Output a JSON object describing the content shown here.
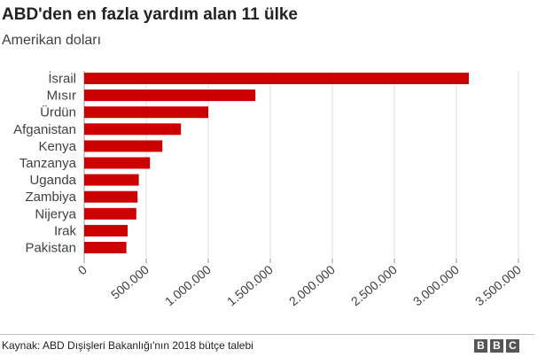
{
  "header": {
    "title": "ABD'den en fazla yardım alan 11 ülke",
    "subtitle": "Amerikan doları"
  },
  "footer": {
    "source": "Kaynak: ABD Dışişleri Bakanlığı'nın 2018 bütçe talebi",
    "logo_letters": [
      "B",
      "B",
      "C"
    ]
  },
  "colors": {
    "bar": "#cc0000",
    "grid": "#dddddd"
  },
  "chart_data": {
    "type": "bar",
    "orientation": "horizontal",
    "title": "ABD'den en fazla yardım alan 11 ülke",
    "subtitle": "Amerikan doları",
    "categories": [
      "İsrail",
      "Mısır",
      "Ürdün",
      "Afganistan",
      "Kenya",
      "Tanzanya",
      "Uganda",
      "Zambiya",
      "Nijerya",
      "Irak",
      "Pakistan"
    ],
    "values": [
      3100000,
      1380000,
      1000000,
      780000,
      630000,
      530000,
      440000,
      430000,
      420000,
      350000,
      340000
    ],
    "xlim": [
      0,
      3500000
    ],
    "xticks": [
      0,
      500000,
      1000000,
      1500000,
      2000000,
      2500000,
      3000000,
      3500000
    ],
    "xtick_labels": [
      "0",
      "500.000",
      "1.000.000",
      "1.500.000",
      "2.000.000",
      "2.500.000",
      "3.000.000",
      "3.500.000"
    ],
    "grid": true,
    "legend": "none"
  }
}
